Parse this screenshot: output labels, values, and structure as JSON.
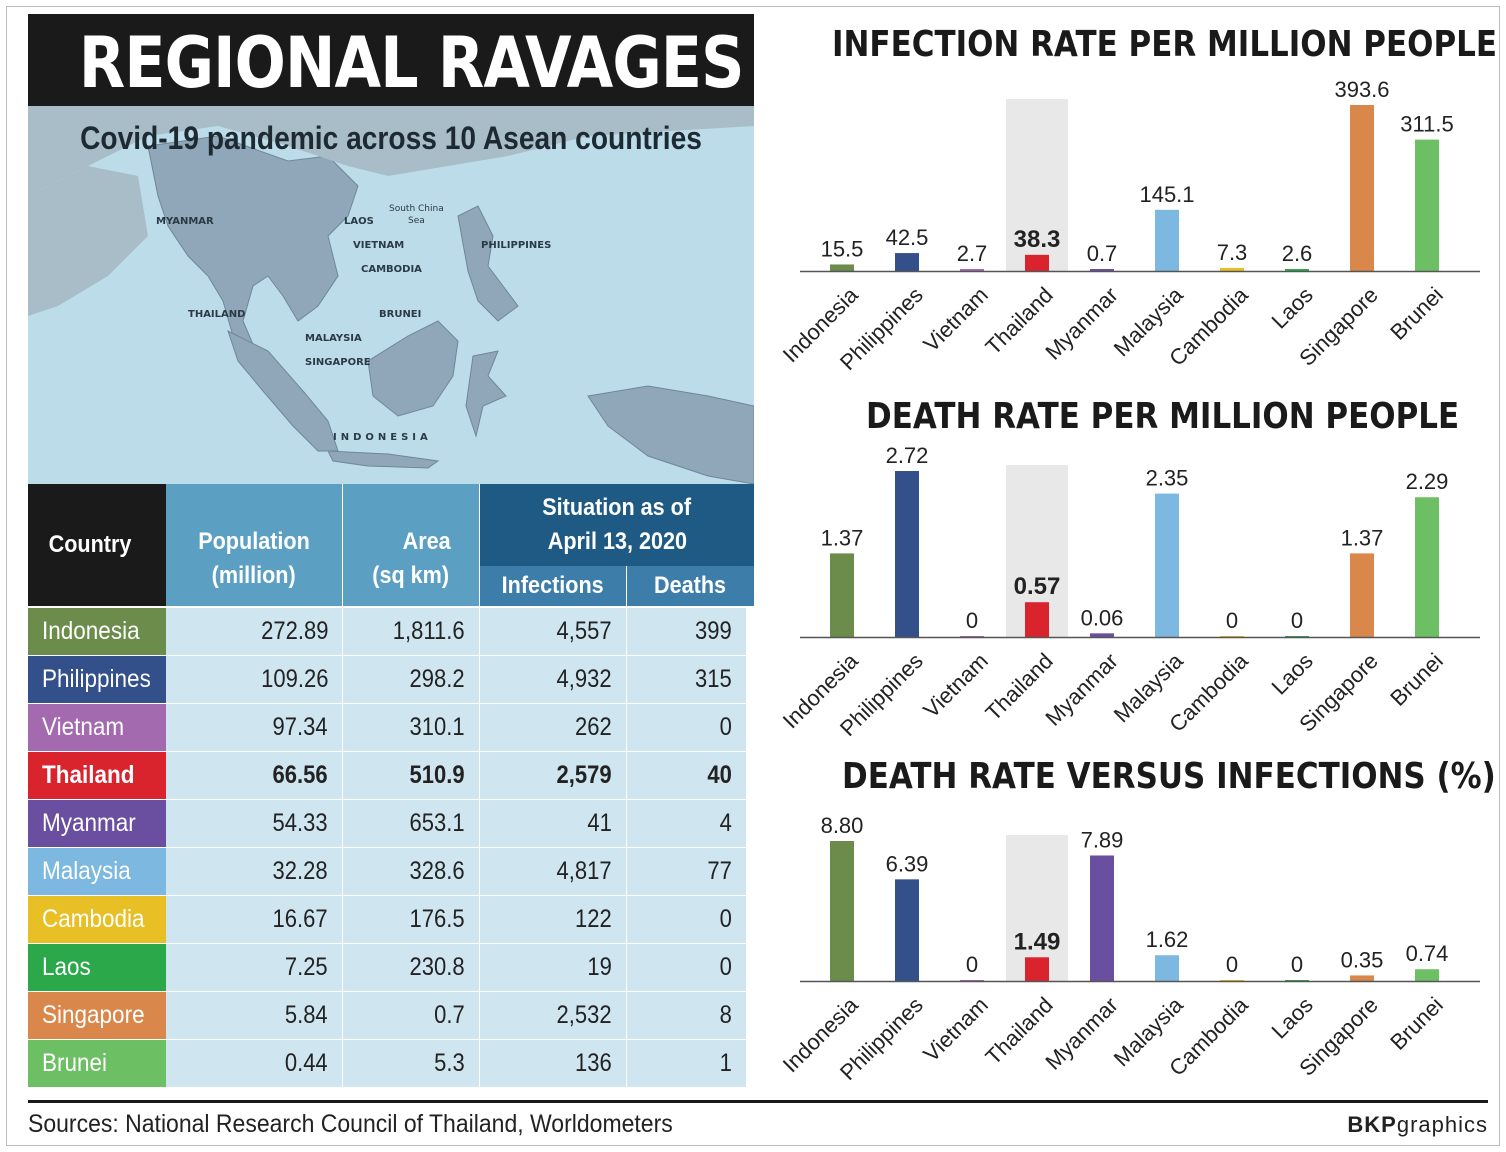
{
  "title": "REGIONAL RAVAGES",
  "subtitle": "Covid-19 pandemic across 10 Asean countries",
  "map_labels": {
    "myanmar": "MYANMAR",
    "laos": "LAOS",
    "south_china_sea_1": "South China",
    "south_china_sea_2": "Sea",
    "vietnam": "VIETNAM",
    "cambodia": "CAMBODIA",
    "philippines": "PHILIPPINES",
    "thailand": "THAILAND",
    "brunei": "BRUNEI",
    "malaysia": "MALAYSIA",
    "singapore": "SINGAPORE",
    "indonesia": "INDONESIA"
  },
  "table": {
    "header_country": "Country",
    "header_population_1": "Population",
    "header_population_2": "(million)",
    "header_area_1": "Area",
    "header_area_2": "(sq km)",
    "header_situation_1": "Situation as of",
    "header_situation_2": "April 13, 2020",
    "header_infections": "Infections",
    "header_deaths": "Deaths",
    "rows": [
      {
        "country": "Indonesia",
        "population": "272.89",
        "area": "1,811.6",
        "infections": "4,557",
        "deaths": "399",
        "color": "#6b8c4b"
      },
      {
        "country": "Philippines",
        "population": "109.26",
        "area": "298.2",
        "infections": "4,932",
        "deaths": "315",
        "color": "#34508a"
      },
      {
        "country": "Vietnam",
        "population": "97.34",
        "area": "310.1",
        "infections": "262",
        "deaths": "0",
        "color": "#a46ab0"
      },
      {
        "country": "Thailand",
        "population": "66.56",
        "area": "510.9",
        "infections": "2,579",
        "deaths": "40",
        "color": "#d9232d"
      },
      {
        "country": "Myanmar",
        "population": "54.33",
        "area": "653.1",
        "infections": "41",
        "deaths": "4",
        "color": "#6a4fa0"
      },
      {
        "country": "Malaysia",
        "population": "32.28",
        "area": "328.6",
        "infections": "4,817",
        "deaths": "77",
        "color": "#7cb8e0"
      },
      {
        "country": "Cambodia",
        "population": "16.67",
        "area": "176.5",
        "infections": "122",
        "deaths": "0",
        "color": "#e9bf26"
      },
      {
        "country": "Laos",
        "population": "7.25",
        "area": "230.8",
        "infections": "19",
        "deaths": "0",
        "color": "#2aa84a"
      },
      {
        "country": "Singapore",
        "population": "5.84",
        "area": "0.7",
        "infections": "2,532",
        "deaths": "8",
        "color": "#d9874a"
      },
      {
        "country": "Brunei",
        "population": "0.44",
        "area": "5.3",
        "infections": "136",
        "deaths": "1",
        "color": "#6cbf63"
      }
    ]
  },
  "colors": {
    "banner": "#1a1a1a",
    "map_sea": "#bcdcea",
    "header_dark": "#1a1a1a",
    "header_mid": "#5b9fc3",
    "header_navy": "#1f5a85",
    "header_sub": "#3c7ea9",
    "cell_bg": "#cfe6f1",
    "highlight": "#e8e8e8"
  },
  "chart_data": [
    {
      "type": "bar",
      "title": "INFECTION RATE PER MILLION PEOPLE",
      "categories": [
        "Indonesia",
        "Philippines",
        "Vietnam",
        "Thailand",
        "Myanmar",
        "Malaysia",
        "Cambodia",
        "Laos",
        "Singapore",
        "Brunei"
      ],
      "values": [
        15.5,
        42.5,
        2.7,
        38.3,
        0.7,
        145.1,
        7.3,
        2.6,
        393.6,
        311.5
      ],
      "labels": [
        "15.5",
        "42.5",
        "2.7",
        "38.3",
        "0.7",
        "145.1",
        "7.3",
        "2.6",
        "393.6",
        "311.5"
      ],
      "highlight": "Thailand",
      "ylim": [
        0,
        393.6
      ]
    },
    {
      "type": "bar",
      "title": "DEATH RATE PER MILLION PEOPLE",
      "categories": [
        "Indonesia",
        "Philippines",
        "Vietnam",
        "Thailand",
        "Myanmar",
        "Malaysia",
        "Cambodia",
        "Laos",
        "Singapore",
        "Brunei"
      ],
      "values": [
        1.37,
        2.72,
        0,
        0.57,
        0.06,
        2.35,
        0,
        0,
        1.37,
        2.29
      ],
      "labels": [
        "1.37",
        "2.72",
        "0",
        "0.57",
        "0.06",
        "2.35",
        "0",
        "0",
        "1.37",
        "2.29"
      ],
      "highlight": "Thailand",
      "ylim": [
        0,
        2.72
      ]
    },
    {
      "type": "bar",
      "title": "DEATH RATE VERSUS INFECTIONS (%)",
      "categories": [
        "Indonesia",
        "Philippines",
        "Vietnam",
        "Thailand",
        "Myanmar",
        "Malaysia",
        "Cambodia",
        "Laos",
        "Singapore",
        "Brunei"
      ],
      "values": [
        8.8,
        6.39,
        0,
        1.49,
        7.89,
        1.62,
        0,
        0,
        0.35,
        0.74
      ],
      "labels": [
        "8.80",
        "6.39",
        "0",
        "1.49",
        "7.89",
        "1.62",
        "0",
        "0",
        "0.35",
        "0.74"
      ],
      "highlight": "Thailand",
      "ylim": [
        0,
        8.8
      ]
    }
  ],
  "sources": "Sources: National Research Council of Thailand, Worldometers",
  "credit_bold": "BKP",
  "credit_rest": "graphics"
}
